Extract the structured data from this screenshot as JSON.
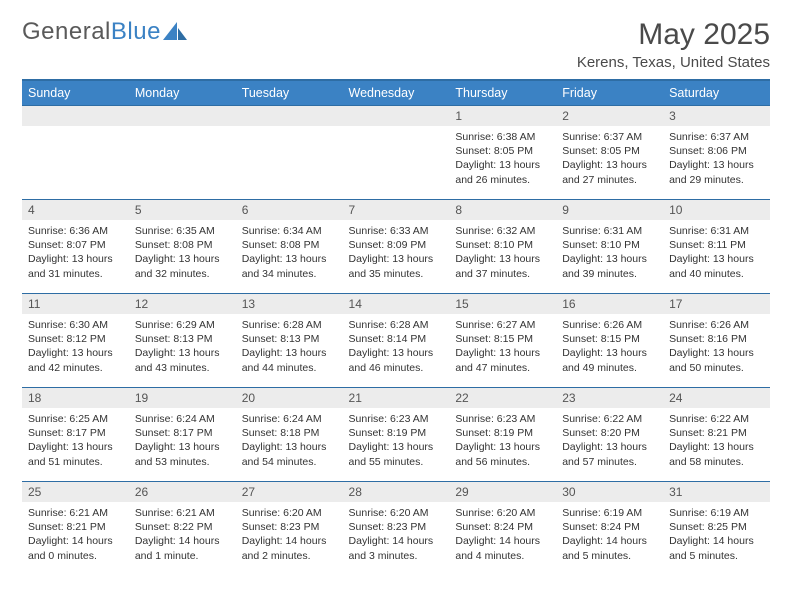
{
  "brand": {
    "part1": "General",
    "part2": "Blue"
  },
  "title": "May 2025",
  "location": "Kerens, Texas, United States",
  "colors": {
    "header_bg": "#3b82c4",
    "header_text": "#ffffff",
    "rule": "#2e6da4",
    "daynum_bg": "#ececec",
    "body_text": "#333333"
  },
  "dow": [
    "Sunday",
    "Monday",
    "Tuesday",
    "Wednesday",
    "Thursday",
    "Friday",
    "Saturday"
  ],
  "weeks": [
    [
      null,
      null,
      null,
      null,
      {
        "n": "1",
        "sr": "Sunrise: 6:38 AM",
        "ss": "Sunset: 8:05 PM",
        "d1": "Daylight: 13 hours",
        "d2": "and 26 minutes."
      },
      {
        "n": "2",
        "sr": "Sunrise: 6:37 AM",
        "ss": "Sunset: 8:05 PM",
        "d1": "Daylight: 13 hours",
        "d2": "and 27 minutes."
      },
      {
        "n": "3",
        "sr": "Sunrise: 6:37 AM",
        "ss": "Sunset: 8:06 PM",
        "d1": "Daylight: 13 hours",
        "d2": "and 29 minutes."
      }
    ],
    [
      {
        "n": "4",
        "sr": "Sunrise: 6:36 AM",
        "ss": "Sunset: 8:07 PM",
        "d1": "Daylight: 13 hours",
        "d2": "and 31 minutes."
      },
      {
        "n": "5",
        "sr": "Sunrise: 6:35 AM",
        "ss": "Sunset: 8:08 PM",
        "d1": "Daylight: 13 hours",
        "d2": "and 32 minutes."
      },
      {
        "n": "6",
        "sr": "Sunrise: 6:34 AM",
        "ss": "Sunset: 8:08 PM",
        "d1": "Daylight: 13 hours",
        "d2": "and 34 minutes."
      },
      {
        "n": "7",
        "sr": "Sunrise: 6:33 AM",
        "ss": "Sunset: 8:09 PM",
        "d1": "Daylight: 13 hours",
        "d2": "and 35 minutes."
      },
      {
        "n": "8",
        "sr": "Sunrise: 6:32 AM",
        "ss": "Sunset: 8:10 PM",
        "d1": "Daylight: 13 hours",
        "d2": "and 37 minutes."
      },
      {
        "n": "9",
        "sr": "Sunrise: 6:31 AM",
        "ss": "Sunset: 8:10 PM",
        "d1": "Daylight: 13 hours",
        "d2": "and 39 minutes."
      },
      {
        "n": "10",
        "sr": "Sunrise: 6:31 AM",
        "ss": "Sunset: 8:11 PM",
        "d1": "Daylight: 13 hours",
        "d2": "and 40 minutes."
      }
    ],
    [
      {
        "n": "11",
        "sr": "Sunrise: 6:30 AM",
        "ss": "Sunset: 8:12 PM",
        "d1": "Daylight: 13 hours",
        "d2": "and 42 minutes."
      },
      {
        "n": "12",
        "sr": "Sunrise: 6:29 AM",
        "ss": "Sunset: 8:13 PM",
        "d1": "Daylight: 13 hours",
        "d2": "and 43 minutes."
      },
      {
        "n": "13",
        "sr": "Sunrise: 6:28 AM",
        "ss": "Sunset: 8:13 PM",
        "d1": "Daylight: 13 hours",
        "d2": "and 44 minutes."
      },
      {
        "n": "14",
        "sr": "Sunrise: 6:28 AM",
        "ss": "Sunset: 8:14 PM",
        "d1": "Daylight: 13 hours",
        "d2": "and 46 minutes."
      },
      {
        "n": "15",
        "sr": "Sunrise: 6:27 AM",
        "ss": "Sunset: 8:15 PM",
        "d1": "Daylight: 13 hours",
        "d2": "and 47 minutes."
      },
      {
        "n": "16",
        "sr": "Sunrise: 6:26 AM",
        "ss": "Sunset: 8:15 PM",
        "d1": "Daylight: 13 hours",
        "d2": "and 49 minutes."
      },
      {
        "n": "17",
        "sr": "Sunrise: 6:26 AM",
        "ss": "Sunset: 8:16 PM",
        "d1": "Daylight: 13 hours",
        "d2": "and 50 minutes."
      }
    ],
    [
      {
        "n": "18",
        "sr": "Sunrise: 6:25 AM",
        "ss": "Sunset: 8:17 PM",
        "d1": "Daylight: 13 hours",
        "d2": "and 51 minutes."
      },
      {
        "n": "19",
        "sr": "Sunrise: 6:24 AM",
        "ss": "Sunset: 8:17 PM",
        "d1": "Daylight: 13 hours",
        "d2": "and 53 minutes."
      },
      {
        "n": "20",
        "sr": "Sunrise: 6:24 AM",
        "ss": "Sunset: 8:18 PM",
        "d1": "Daylight: 13 hours",
        "d2": "and 54 minutes."
      },
      {
        "n": "21",
        "sr": "Sunrise: 6:23 AM",
        "ss": "Sunset: 8:19 PM",
        "d1": "Daylight: 13 hours",
        "d2": "and 55 minutes."
      },
      {
        "n": "22",
        "sr": "Sunrise: 6:23 AM",
        "ss": "Sunset: 8:19 PM",
        "d1": "Daylight: 13 hours",
        "d2": "and 56 minutes."
      },
      {
        "n": "23",
        "sr": "Sunrise: 6:22 AM",
        "ss": "Sunset: 8:20 PM",
        "d1": "Daylight: 13 hours",
        "d2": "and 57 minutes."
      },
      {
        "n": "24",
        "sr": "Sunrise: 6:22 AM",
        "ss": "Sunset: 8:21 PM",
        "d1": "Daylight: 13 hours",
        "d2": "and 58 minutes."
      }
    ],
    [
      {
        "n": "25",
        "sr": "Sunrise: 6:21 AM",
        "ss": "Sunset: 8:21 PM",
        "d1": "Daylight: 14 hours",
        "d2": "and 0 minutes."
      },
      {
        "n": "26",
        "sr": "Sunrise: 6:21 AM",
        "ss": "Sunset: 8:22 PM",
        "d1": "Daylight: 14 hours",
        "d2": "and 1 minute."
      },
      {
        "n": "27",
        "sr": "Sunrise: 6:20 AM",
        "ss": "Sunset: 8:23 PM",
        "d1": "Daylight: 14 hours",
        "d2": "and 2 minutes."
      },
      {
        "n": "28",
        "sr": "Sunrise: 6:20 AM",
        "ss": "Sunset: 8:23 PM",
        "d1": "Daylight: 14 hours",
        "d2": "and 3 minutes."
      },
      {
        "n": "29",
        "sr": "Sunrise: 6:20 AM",
        "ss": "Sunset: 8:24 PM",
        "d1": "Daylight: 14 hours",
        "d2": "and 4 minutes."
      },
      {
        "n": "30",
        "sr": "Sunrise: 6:19 AM",
        "ss": "Sunset: 8:24 PM",
        "d1": "Daylight: 14 hours",
        "d2": "and 5 minutes."
      },
      {
        "n": "31",
        "sr": "Sunrise: 6:19 AM",
        "ss": "Sunset: 8:25 PM",
        "d1": "Daylight: 14 hours",
        "d2": "and 5 minutes."
      }
    ]
  ]
}
